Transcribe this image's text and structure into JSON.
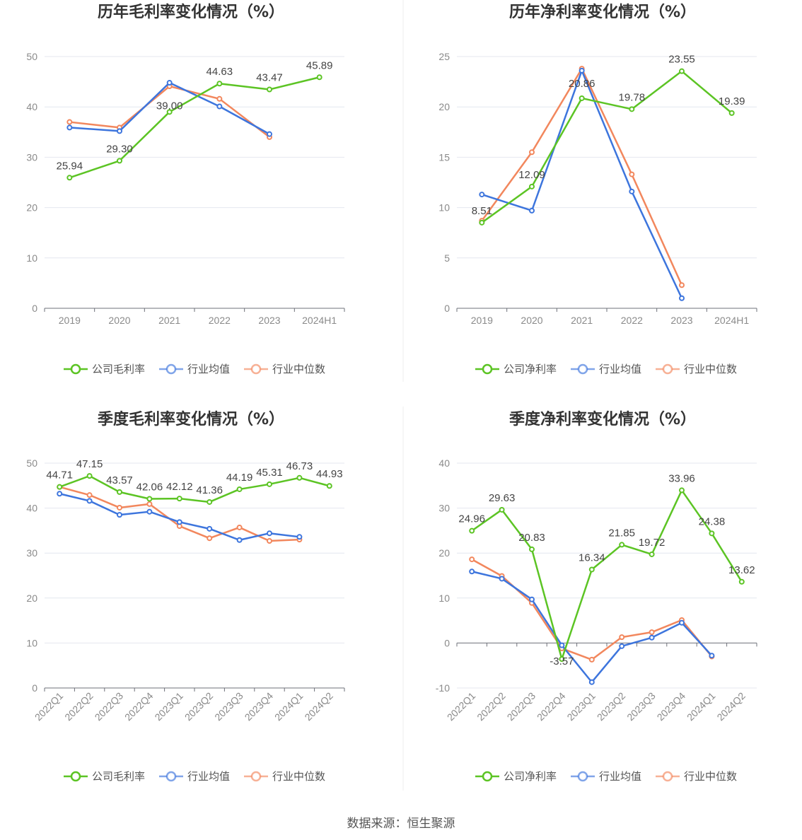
{
  "source": "数据来源：恒生聚源",
  "colors": {
    "company": "#5cc424",
    "industry_avg": "#3d75dd",
    "industry_median": "#f2875d"
  },
  "chart_data": [
    {
      "type": "line",
      "title": "历年毛利率变化情况（%）",
      "categories": [
        "2019",
        "2020",
        "2021",
        "2022",
        "2023",
        "2024H1"
      ],
      "ylim": [
        0,
        50
      ],
      "yticks": [
        0,
        10,
        20,
        30,
        40,
        50
      ],
      "label_series": 0,
      "labels": [
        "25.94",
        "29.30",
        "39.00",
        "44.63",
        "43.47",
        "45.89"
      ],
      "series": [
        {
          "name": "公司毛利率",
          "color": "#5cc424",
          "values": [
            25.94,
            29.3,
            39.0,
            44.63,
            43.47,
            45.89
          ]
        },
        {
          "name": "行业均值",
          "color": "#3d75dd",
          "values": [
            35.9,
            35.2,
            44.8,
            40.1,
            34.6,
            null
          ]
        },
        {
          "name": "行业中位数",
          "color": "#f2875d",
          "values": [
            37.0,
            35.9,
            44.1,
            41.6,
            34.0,
            null
          ]
        }
      ]
    },
    {
      "type": "line",
      "title": "历年净利率变化情况（%）",
      "categories": [
        "2019",
        "2020",
        "2021",
        "2022",
        "2023",
        "2024H1"
      ],
      "ylim": [
        0,
        25
      ],
      "yticks": [
        0,
        5,
        10,
        15,
        20,
        25
      ],
      "label_series": 0,
      "labels": [
        "8.51",
        "12.09",
        "20.86",
        "19.78",
        "23.55",
        "19.39"
      ],
      "series": [
        {
          "name": "公司净利率",
          "color": "#5cc424",
          "values": [
            8.51,
            12.09,
            20.86,
            19.78,
            23.55,
            19.39
          ]
        },
        {
          "name": "行业均值",
          "color": "#3d75dd",
          "values": [
            11.3,
            9.7,
            23.6,
            11.6,
            1.0,
            null
          ]
        },
        {
          "name": "行业中位数",
          "color": "#f2875d",
          "values": [
            8.7,
            15.5,
            23.8,
            13.3,
            2.3,
            null
          ]
        }
      ]
    },
    {
      "type": "line",
      "title": "季度毛利率变化情况（%）",
      "categories": [
        "2022Q1",
        "2022Q2",
        "2022Q3",
        "2022Q4",
        "2023Q1",
        "2023Q2",
        "2023Q3",
        "2023Q4",
        "2024Q1",
        "2024Q2"
      ],
      "ylim": [
        0,
        50
      ],
      "yticks": [
        0,
        10,
        20,
        30,
        40,
        50
      ],
      "label_series": 0,
      "labels": [
        "44.71",
        "47.15",
        "43.57",
        "42.06",
        "42.12",
        "41.36",
        "44.19",
        "45.31",
        "46.73",
        "44.93"
      ],
      "series": [
        {
          "name": "公司毛利率",
          "color": "#5cc424",
          "values": [
            44.71,
            47.15,
            43.57,
            42.06,
            42.12,
            41.36,
            44.19,
            45.31,
            46.73,
            44.93
          ]
        },
        {
          "name": "行业均值",
          "color": "#3d75dd",
          "values": [
            43.2,
            41.6,
            38.5,
            39.2,
            36.9,
            35.4,
            32.9,
            34.4,
            33.6,
            null
          ]
        },
        {
          "name": "行业中位数",
          "color": "#f2875d",
          "values": [
            44.7,
            42.9,
            40.1,
            40.9,
            36.0,
            33.3,
            35.7,
            32.7,
            33.0,
            null
          ]
        }
      ]
    },
    {
      "type": "line",
      "title": "季度净利率变化情况（%）",
      "categories": [
        "2022Q1",
        "2022Q2",
        "2022Q3",
        "2022Q4",
        "2023Q1",
        "2023Q2",
        "2023Q3",
        "2023Q4",
        "2024Q1",
        "2024Q2"
      ],
      "ylim": [
        -10,
        40
      ],
      "yticks": [
        -10,
        0,
        10,
        20,
        30,
        40
      ],
      "label_series": 0,
      "labels": [
        "24.96",
        "29.63",
        "20.83",
        "-3.57",
        "16.34",
        "21.85",
        "19.72",
        "33.96",
        "24.38",
        "13.62"
      ],
      "series": [
        {
          "name": "公司净利率",
          "color": "#5cc424",
          "values": [
            24.96,
            29.63,
            20.83,
            -3.57,
            16.34,
            21.85,
            19.72,
            33.96,
            24.38,
            13.62
          ]
        },
        {
          "name": "行业均值",
          "color": "#3d75dd",
          "values": [
            15.9,
            14.3,
            9.7,
            -0.5,
            -8.7,
            -0.7,
            1.2,
            4.5,
            -2.8,
            null
          ]
        },
        {
          "name": "行业中位数",
          "color": "#f2875d",
          "values": [
            18.6,
            14.9,
            8.9,
            -1.2,
            -3.7,
            1.3,
            2.4,
            5.1,
            -3.0,
            null
          ]
        }
      ]
    }
  ]
}
